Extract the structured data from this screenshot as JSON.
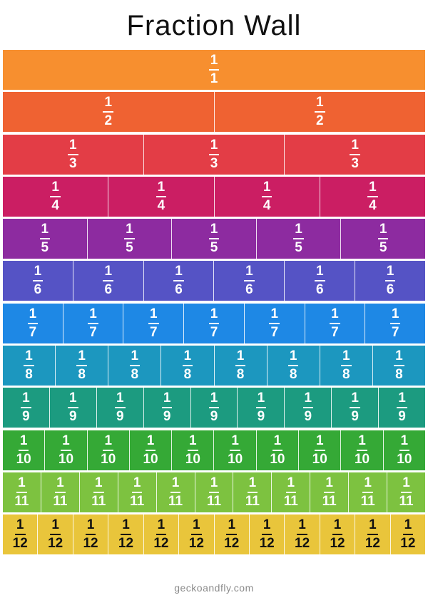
{
  "title": "Fraction Wall",
  "footer": "geckoandfly.com",
  "rows": [
    {
      "numerator": "1",
      "denominator": "1",
      "count": 1,
      "color": "#F78F2F",
      "text_color": "#ffffff"
    },
    {
      "numerator": "1",
      "denominator": "2",
      "count": 2,
      "color": "#EF6232",
      "text_color": "#ffffff"
    },
    {
      "numerator": "1",
      "denominator": "3",
      "count": 3,
      "color": "#E33D46",
      "text_color": "#ffffff"
    },
    {
      "numerator": "1",
      "denominator": "4",
      "count": 4,
      "color": "#CB1E63",
      "text_color": "#ffffff"
    },
    {
      "numerator": "1",
      "denominator": "5",
      "count": 5,
      "color": "#8D2BA0",
      "text_color": "#ffffff"
    },
    {
      "numerator": "1",
      "denominator": "6",
      "count": 6,
      "color": "#5553C5",
      "text_color": "#ffffff"
    },
    {
      "numerator": "1",
      "denominator": "7",
      "count": 7,
      "color": "#1E88E5",
      "text_color": "#ffffff"
    },
    {
      "numerator": "1",
      "denominator": "8",
      "count": 8,
      "color": "#1C97BF",
      "text_color": "#ffffff"
    },
    {
      "numerator": "1",
      "denominator": "9",
      "count": 9,
      "color": "#1C9B80",
      "text_color": "#ffffff"
    },
    {
      "numerator": "1",
      "denominator": "10",
      "count": 10,
      "color": "#35A936",
      "text_color": "#ffffff"
    },
    {
      "numerator": "1",
      "denominator": "11",
      "count": 11,
      "color": "#7DC240",
      "text_color": "#ffffff"
    },
    {
      "numerator": "1",
      "denominator": "12",
      "count": 12,
      "color": "#E9C53B",
      "text_color": "#111111"
    }
  ]
}
